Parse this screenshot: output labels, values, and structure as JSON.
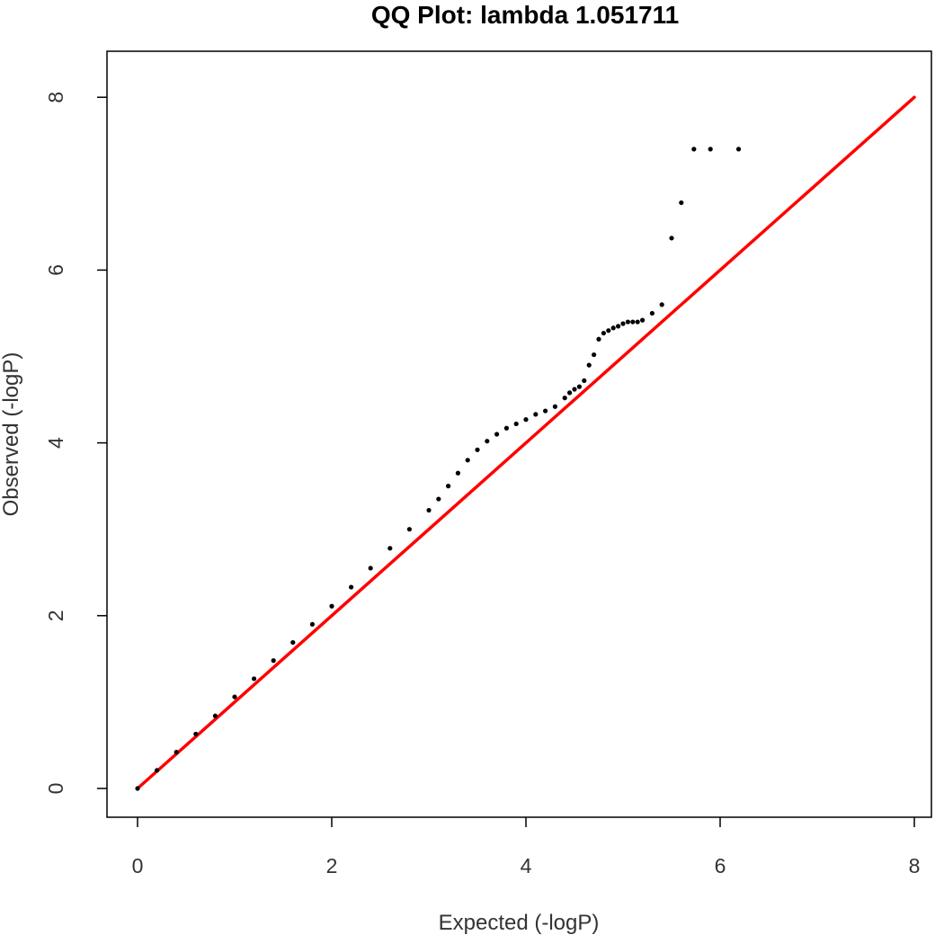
{
  "chart_data": {
    "type": "scatter",
    "title": "QQ Plot: lambda 1.051711",
    "xlabel": "Expected (-logP)",
    "ylabel": "Observed (-logP)",
    "xlim": [
      0,
      8
    ],
    "ylim": [
      0,
      8
    ],
    "x_ticks": [
      "0",
      "2",
      "4",
      "6",
      "8"
    ],
    "y_ticks": [
      "0",
      "2",
      "4",
      "6",
      "8"
    ],
    "grid": false,
    "legend": "none",
    "colors": {
      "points": "#000000",
      "reference_line": "#ff0000",
      "frame": "#000000"
    },
    "reference_line": {
      "x": [
        0,
        8
      ],
      "y": [
        0,
        8
      ]
    },
    "series": [
      {
        "x": [
          0.0,
          0.2,
          0.4,
          0.6,
          0.8,
          1.0,
          1.2,
          1.4,
          1.6,
          1.8,
          2.0,
          2.2,
          2.4,
          2.6,
          2.8,
          3.0,
          3.1,
          3.2,
          3.3,
          3.4,
          3.5,
          3.6,
          3.7,
          3.8,
          3.9,
          4.0,
          4.1,
          4.2,
          4.3,
          4.4,
          4.45,
          4.5,
          4.55,
          4.6,
          4.65,
          4.7,
          4.75,
          4.8,
          4.85,
          4.9,
          4.95,
          5.0,
          5.05,
          5.1,
          5.15,
          5.2,
          5.3,
          5.4,
          5.5,
          5.6,
          5.73,
          5.9,
          6.19
        ],
        "y": [
          0.0,
          0.21,
          0.42,
          0.63,
          0.84,
          1.06,
          1.27,
          1.48,
          1.69,
          1.9,
          2.11,
          2.33,
          2.55,
          2.78,
          3.0,
          3.22,
          3.35,
          3.5,
          3.65,
          3.8,
          3.92,
          4.02,
          4.1,
          4.17,
          4.22,
          4.27,
          4.33,
          4.37,
          4.42,
          4.52,
          4.58,
          4.62,
          4.65,
          4.72,
          4.9,
          5.02,
          5.2,
          5.27,
          5.3,
          5.33,
          5.35,
          5.38,
          5.4,
          5.4,
          5.4,
          5.42,
          5.5,
          5.6,
          6.37,
          6.78,
          7.4,
          7.4,
          7.4
        ]
      }
    ]
  }
}
